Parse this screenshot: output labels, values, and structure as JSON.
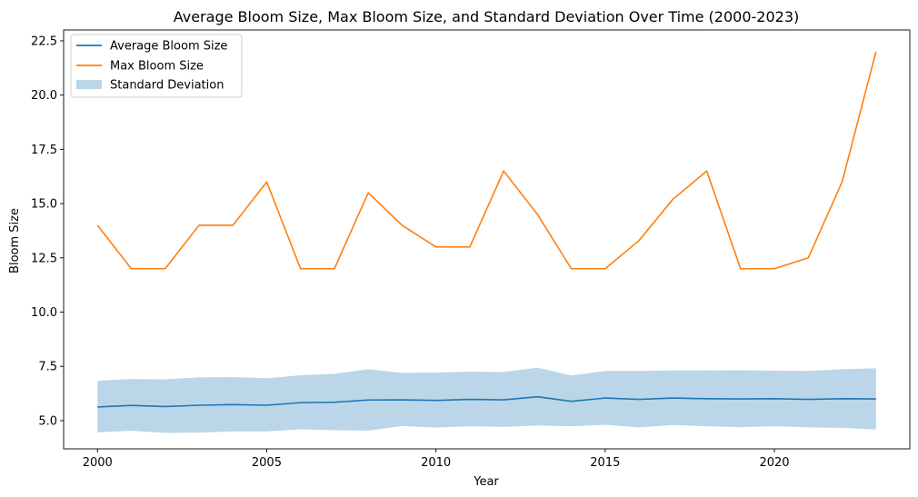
{
  "chart_data": {
    "type": "line",
    "title": "Average Bloom Size, Max Bloom Size, and Standard Deviation Over Time (2000-2023)",
    "xlabel": "Year",
    "ylabel": "Bloom Size",
    "xlim": [
      1999,
      2024
    ],
    "ylim": [
      3.7,
      23.0
    ],
    "x_ticks": [
      2000,
      2005,
      2010,
      2015,
      2020
    ],
    "y_ticks": [
      5.0,
      7.5,
      10.0,
      12.5,
      15.0,
      17.5,
      20.0,
      22.5
    ],
    "y_tick_labels": [
      "5.0",
      "7.5",
      "10.0",
      "12.5",
      "15.0",
      "17.5",
      "20.0",
      "22.5"
    ],
    "legend_position": "top-left",
    "grid": false,
    "x": [
      2000,
      2001,
      2002,
      2003,
      2004,
      2005,
      2006,
      2007,
      2008,
      2009,
      2010,
      2011,
      2012,
      2013,
      2014,
      2015,
      2016,
      2017,
      2018,
      2019,
      2020,
      2021,
      2022,
      2023
    ],
    "series": [
      {
        "name": "Average Bloom Size",
        "kind": "line",
        "color": "#1f77b4",
        "values": [
          5.63,
          5.7,
          5.65,
          5.71,
          5.74,
          5.71,
          5.83,
          5.85,
          5.95,
          5.96,
          5.93,
          5.98,
          5.96,
          6.1,
          5.89,
          6.04,
          5.98,
          6.04,
          6.01,
          6.0,
          6.01,
          5.98,
          6.01,
          6.0
        ]
      },
      {
        "name": "Max Bloom Size",
        "kind": "line",
        "color": "#ff7f0e",
        "values": [
          14.0,
          12.0,
          12.0,
          14.0,
          14.0,
          16.0,
          12.0,
          12.0,
          15.5,
          14.0,
          13.0,
          13.0,
          16.5,
          14.5,
          12.0,
          12.0,
          13.3,
          15.2,
          16.5,
          12.0,
          12.0,
          12.5,
          16.0,
          22.0
        ]
      },
      {
        "name": "Standard Deviation",
        "kind": "band",
        "color": "#1f77b4",
        "opacity": 0.3,
        "upper": [
          6.83,
          6.92,
          6.9,
          6.99,
          7.01,
          6.95,
          7.09,
          7.16,
          7.37,
          7.2,
          7.21,
          7.26,
          7.24,
          7.44,
          7.08,
          7.29,
          7.29,
          7.31,
          7.31,
          7.32,
          7.3,
          7.29,
          7.37,
          7.41
        ],
        "lower": [
          4.46,
          4.53,
          4.43,
          4.45,
          4.5,
          4.5,
          4.6,
          4.56,
          4.54,
          4.75,
          4.68,
          4.74,
          4.71,
          4.78,
          4.74,
          4.81,
          4.69,
          4.8,
          4.74,
          4.7,
          4.74,
          4.69,
          4.67,
          4.59
        ]
      }
    ]
  }
}
